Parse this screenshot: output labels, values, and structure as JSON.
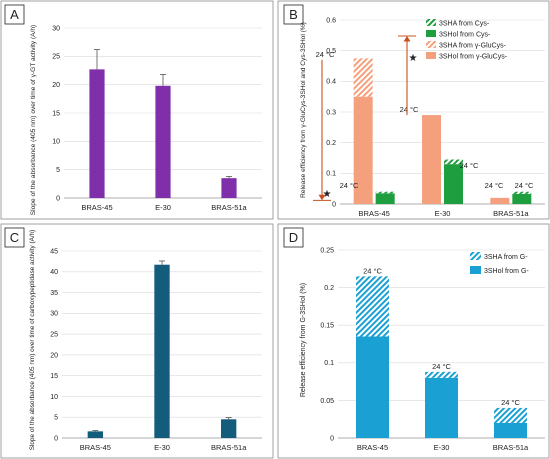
{
  "chart_data": [
    {
      "panel": "A",
      "type": "bar",
      "categories": [
        "BRAS-45",
        "E-30",
        "BRAS-51a"
      ],
      "values": [
        22.7,
        19.8,
        3.5
      ],
      "errors": [
        3.5,
        2.0,
        0.3
      ],
      "ylabel": "Slope of the absorbance (405 nm) over time of γ-GT activity (A/h)",
      "ylim": [
        0,
        30
      ],
      "yticks": [
        0,
        5,
        10,
        15,
        20,
        25,
        30
      ],
      "bar_color": "#7f2faa"
    },
    {
      "panel": "B",
      "type": "bar",
      "stacked": true,
      "categories": [
        "BRAS-45",
        "E-30",
        "BRAS-51a"
      ],
      "ylabel": "Release efficiency from γ-GluCys-3SHol and Cys-3SHol (%)",
      "ylim": [
        0,
        0.6
      ],
      "yticks": [
        0,
        0.1,
        0.2,
        0.3,
        0.4,
        0.5,
        0.6
      ],
      "series": [
        {
          "name": "3SHA from Cys-",
          "group": "Cys",
          "values": [
            0.005,
            0.015,
            0.007
          ],
          "color": "#1e9e3e",
          "hatched": true
        },
        {
          "name": "3SHol from Cys-",
          "group": "Cys",
          "values": [
            0.035,
            0.13,
            0.033
          ],
          "color": "#1e9e3e",
          "hatched": false
        },
        {
          "name": "3SHA from γ-GluCys-",
          "group": "GluCys",
          "values": [
            0.125,
            0.0,
            0.0
          ],
          "color": "#f5a07c",
          "hatched": true
        },
        {
          "name": "3SHol from γ-GluCys-",
          "group": "GluCys",
          "values": [
            0.35,
            0.29,
            0.02
          ],
          "color": "#f5a07c",
          "hatched": false
        }
      ],
      "annotations": [
        "24 °C",
        "24 °C",
        "24 °C",
        "24 °C",
        "24 °C",
        "24 °C"
      ],
      "markers": [
        "★",
        "★"
      ],
      "arrow_color": "#c8501e"
    },
    {
      "panel": "C",
      "type": "bar",
      "categories": [
        "BRAS-45",
        "E-30",
        "BRAS-51a"
      ],
      "values": [
        1.6,
        41.7,
        4.5
      ],
      "errors": [
        0.2,
        0.9,
        0.4
      ],
      "ylabel": "Slope of the absorbance (405 nm) over time of carboxypeptidase activity (A/h)",
      "ylim": [
        0,
        45
      ],
      "yticks": [
        0,
        5,
        10,
        15,
        20,
        25,
        30,
        35,
        40,
        45
      ],
      "bar_color": "#145c7c"
    },
    {
      "panel": "D",
      "type": "bar",
      "stacked": true,
      "categories": [
        "BRAS-45",
        "E-30",
        "BRAS-51a"
      ],
      "ylabel": "Release efficiency from G-3SHol (%)",
      "ylim": [
        0,
        0.25
      ],
      "yticks": [
        0,
        0.05,
        0.1,
        0.15,
        0.2,
        0.25
      ],
      "series": [
        {
          "name": "3SHol from G-",
          "values": [
            0.135,
            0.08,
            0.02
          ],
          "color": "#1aa0d2",
          "hatched": false
        },
        {
          "name": "3SHA from G-",
          "values": [
            0.08,
            0.008,
            0.02
          ],
          "color": "#1aa0d2",
          "hatched": true
        }
      ],
      "annotations": [
        "24 °C",
        "24 °C",
        "24 °C"
      ]
    }
  ]
}
